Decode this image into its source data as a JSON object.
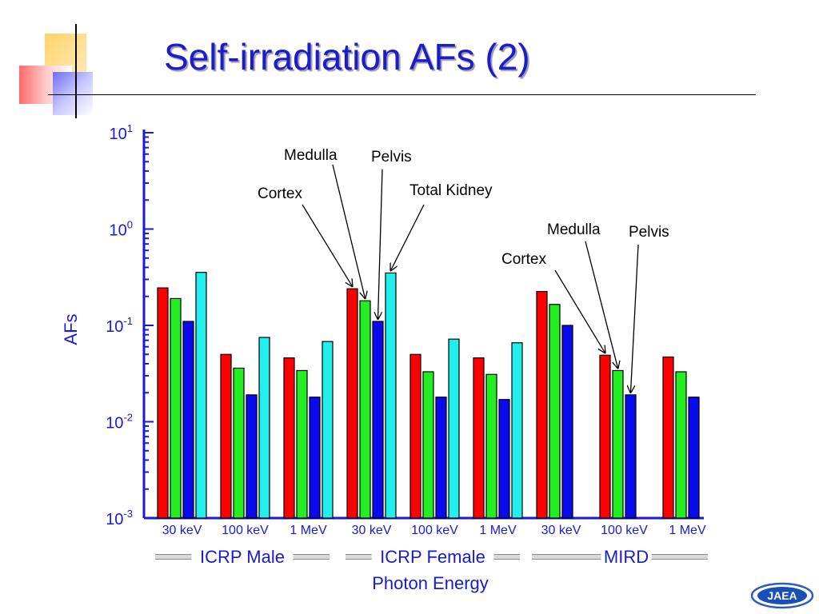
{
  "slide": {
    "title": "Self-irradiation AFs (2)"
  },
  "logo_text": "JAEA",
  "colors": {
    "title": "#1c1cc8",
    "axis_text": "#1a1ad0",
    "cortex": "#ff0000",
    "medulla": "#22ee22",
    "pelvis": "#0a0aee",
    "total_kidney": "#22eeee"
  },
  "chart_data": {
    "type": "bar",
    "y_scale": "log",
    "ylim": [
      0.001,
      10
    ],
    "ylabel": "AFs",
    "xlabel": "Photon Energy",
    "ytick_base": "10",
    "yticks": [
      {
        "value": 10,
        "exp": "1"
      },
      {
        "value": 1,
        "exp": "0"
      },
      {
        "value": 0.1,
        "exp": "-1"
      },
      {
        "value": 0.01,
        "exp": "-2"
      },
      {
        "value": 0.001,
        "exp": "-3"
      }
    ],
    "series_keys": [
      "cortex",
      "medulla",
      "pelvis",
      "total_kidney"
    ],
    "groups": [
      {
        "name": "ICRP Male",
        "categories": [
          {
            "label": "30 keV",
            "values": [
              0.245,
              0.19,
              0.11,
              0.355
            ]
          },
          {
            "label": "100 keV",
            "values": [
              0.05,
              0.036,
              0.019,
              0.075
            ]
          },
          {
            "label": "1 MeV",
            "values": [
              0.046,
              0.034,
              0.018,
              0.068
            ]
          }
        ]
      },
      {
        "name": "ICRP Female",
        "categories": [
          {
            "label": "30 keV",
            "values": [
              0.24,
              0.18,
              0.11,
              0.35
            ]
          },
          {
            "label": "100 keV",
            "values": [
              0.05,
              0.033,
              0.018,
              0.072
            ]
          },
          {
            "label": "1 MeV",
            "values": [
              0.046,
              0.031,
              0.017,
              0.066
            ]
          }
        ]
      },
      {
        "name": "MIRD",
        "categories": [
          {
            "label": "30 keV",
            "values": [
              0.225,
              0.165,
              0.1,
              null
            ]
          },
          {
            "label": "100 keV",
            "values": [
              0.049,
              0.034,
              0.019,
              null
            ]
          },
          {
            "label": "1 MeV",
            "values": [
              0.047,
              0.033,
              0.018,
              null
            ]
          }
        ]
      }
    ],
    "annotations": [
      {
        "text": "Medulla",
        "target": {
          "group": 1,
          "category": 0,
          "series": 1
        }
      },
      {
        "text": "Pelvis",
        "target": {
          "group": 1,
          "category": 0,
          "series": 2
        }
      },
      {
        "text": "Cortex",
        "target": {
          "group": 1,
          "category": 0,
          "series": 0
        }
      },
      {
        "text": "Total Kidney",
        "target": {
          "group": 1,
          "category": 0,
          "series": 3
        }
      },
      {
        "text": "Medulla",
        "target": {
          "group": 2,
          "category": 1,
          "series": 1
        }
      },
      {
        "text": "Pelvis",
        "target": {
          "group": 2,
          "category": 1,
          "series": 2
        }
      },
      {
        "text": "Cortex",
        "target": {
          "group": 2,
          "category": 1,
          "series": 0
        }
      }
    ]
  }
}
